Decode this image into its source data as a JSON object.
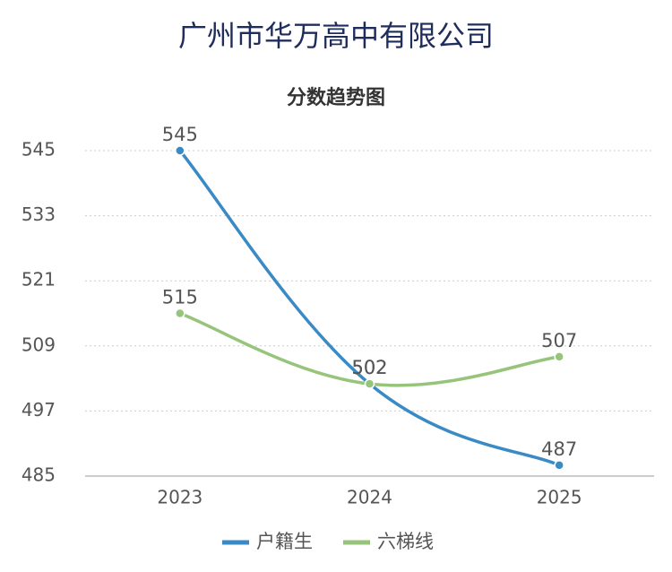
{
  "chart_data": {
    "type": "line",
    "title": "广州市华万高中有限公司",
    "subtitle": "分数趋势图",
    "categories": [
      "2023",
      "2024",
      "2025"
    ],
    "series": [
      {
        "name": "户籍生",
        "color": "#3a8ac6",
        "values": [
          545,
          502,
          487
        ]
      },
      {
        "name": "六梯线",
        "color": "#96c47a",
        "values": [
          515,
          502,
          507
        ]
      }
    ],
    "ylim": [
      485,
      545
    ],
    "yticks": [
      485,
      497,
      509,
      521,
      533,
      545
    ],
    "grid": true,
    "smooth": true,
    "legend": "bottom"
  }
}
